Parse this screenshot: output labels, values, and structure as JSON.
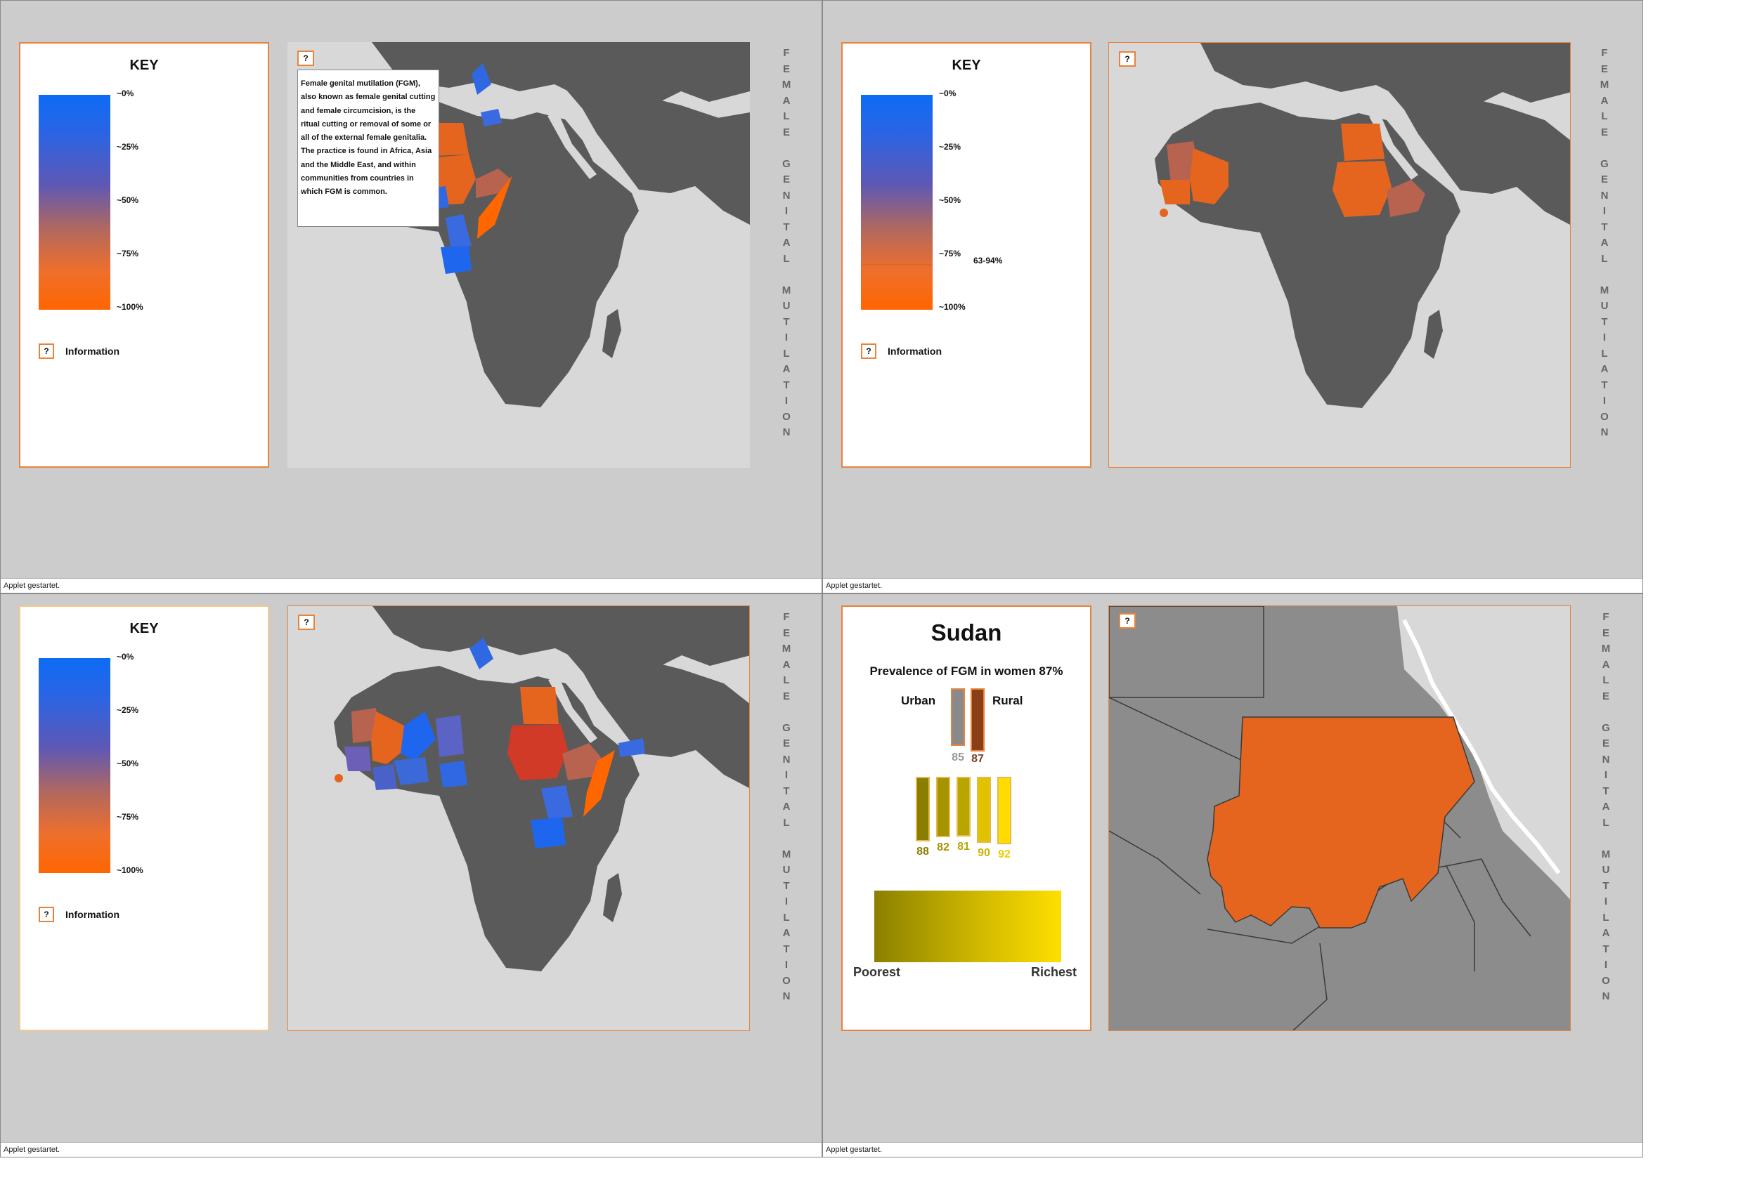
{
  "vertical_title": "FEMALE GENITAL MUTILATION",
  "status_text": "Applet gestartet.",
  "key": {
    "title": "KEY",
    "ticks": [
      "~0%",
      "~25%",
      "~50%",
      "~75%",
      "~100%"
    ],
    "info_button": "?",
    "info_label": "Information"
  },
  "map_help_button": "?",
  "tooltip_text": "Female genital mutilation (FGM), also known as female genital cutting and female circumcision, is the ritual cutting or removal of some or all of the external female genitalia. The practice is found in Africa, Asia and the Middle East, and within communities from countries in which FGM is common.",
  "range_annotation": "63-94%",
  "colors": {
    "panel_bg": "#cccccc",
    "land": "#5a5a5a",
    "sea": "#d8d8d8",
    "orange": "#e5651f",
    "brick": "#b8634f",
    "blue": "#1f66ee",
    "slate": "#5b63c4",
    "red": "#d03a26",
    "accent_border": "#e8833c"
  },
  "sudan": {
    "title": "Sudan",
    "prevalence": "Prevalence of FGM in women 87%",
    "urban_label": "Urban",
    "rural_label": "Rural",
    "urban_value": "85",
    "rural_value": "87",
    "wealth_values": [
      "88",
      "82",
      "81",
      "90",
      "92"
    ],
    "poorest_label": "Poorest",
    "richest_label": "Richest"
  }
}
